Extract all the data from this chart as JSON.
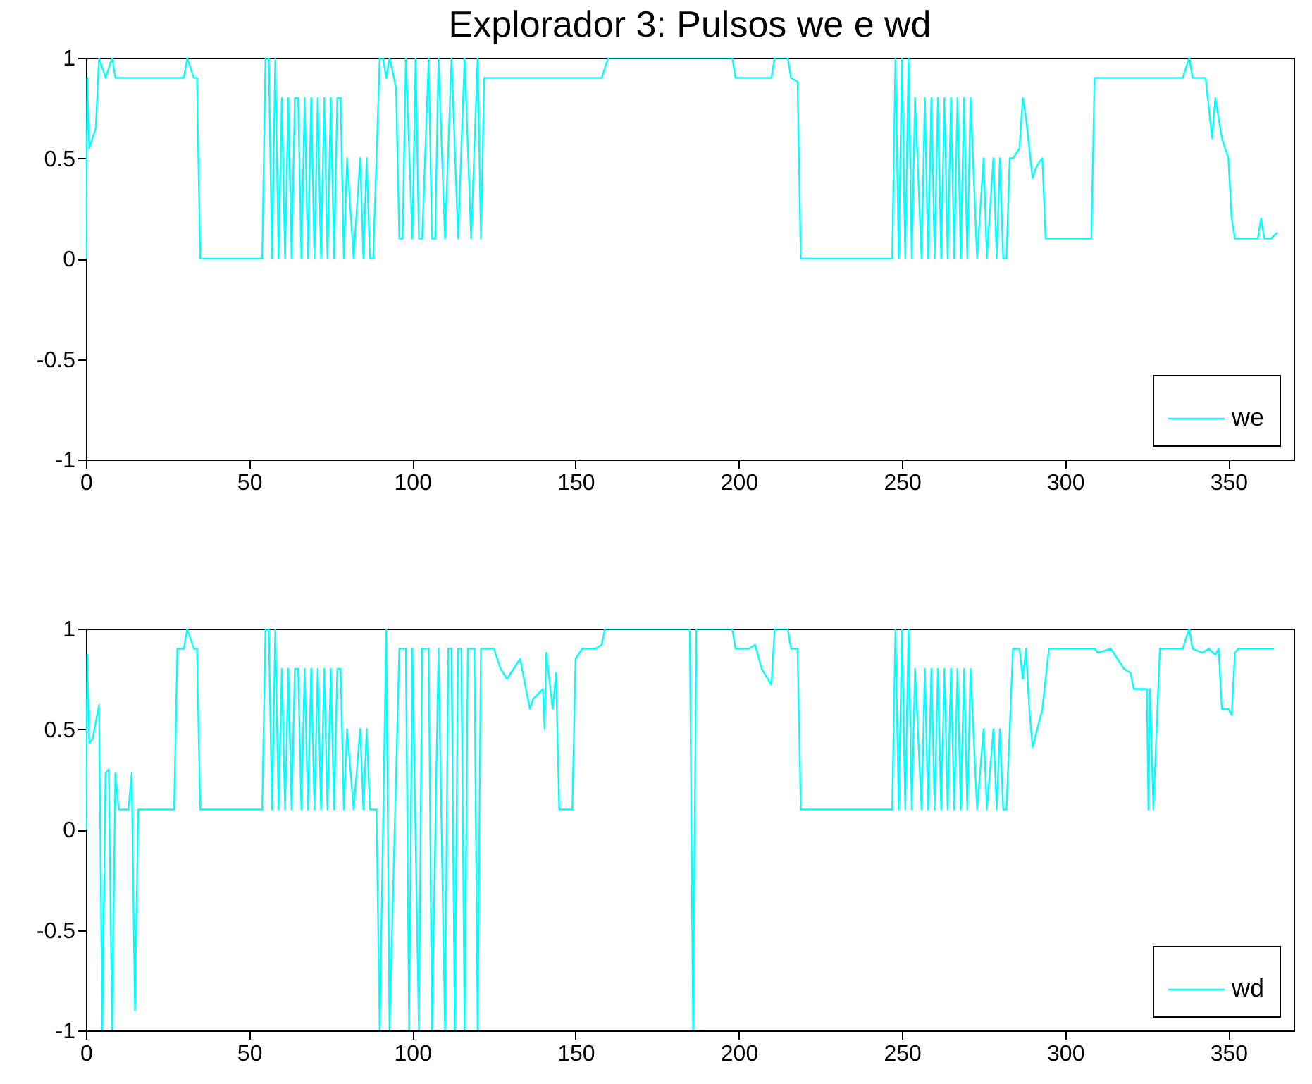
{
  "chart_data": [
    {
      "type": "line",
      "title": "Explorador 3: Pulsos we e wd",
      "xlim": [
        0,
        370
      ],
      "xticks": [
        0,
        50,
        100,
        150,
        200,
        250,
        300,
        350
      ],
      "ylim": [
        -1,
        1
      ],
      "yticks": [
        -1,
        -0.5,
        0,
        0.5,
        1
      ],
      "legend": "bottom right",
      "series": [
        {
          "name": "we",
          "color": "#00ffff",
          "x": [
            0,
            0.4,
            1,
            3,
            4,
            6,
            8,
            9,
            20,
            30,
            31,
            33,
            34,
            35,
            54,
            55,
            56,
            57,
            58,
            59,
            60,
            61,
            62,
            63,
            64,
            65,
            66,
            67,
            68,
            69,
            70,
            71,
            72,
            73,
            74,
            75,
            76,
            77,
            78,
            79,
            80,
            82,
            84,
            85,
            86,
            87,
            88,
            90,
            91,
            92,
            93,
            95,
            96,
            97,
            98,
            100,
            101,
            102,
            103,
            105,
            106,
            107,
            108,
            110,
            112,
            114,
            116,
            118,
            120,
            121,
            122,
            140,
            158,
            160,
            180,
            198,
            199,
            210,
            211,
            215,
            216,
            218,
            219,
            247,
            248,
            249,
            250,
            251,
            252,
            253,
            254,
            256,
            257,
            258,
            259,
            260,
            261,
            262,
            263,
            264,
            265,
            266,
            267,
            268,
            269,
            270,
            271,
            273,
            275,
            276,
            278,
            279,
            280,
            281,
            282,
            283,
            284,
            286,
            287,
            288,
            290,
            291,
            292,
            293,
            294,
            296,
            308,
            309,
            336,
            338,
            339,
            343,
            345,
            346,
            348,
            350,
            351,
            352,
            359,
            360,
            361,
            363,
            365
          ],
          "values": [
            0,
            0.9,
            0.55,
            0.65,
            1,
            0.9,
            1,
            0.9,
            0.9,
            0.9,
            1,
            0.9,
            0.9,
            0,
            0,
            1,
            1,
            0,
            1,
            0,
            0.8,
            0,
            0.8,
            0,
            0.8,
            0.8,
            0,
            0.8,
            0,
            0.8,
            0,
            0.8,
            0,
            0.8,
            0,
            0.8,
            0,
            0.8,
            0.8,
            0,
            0.5,
            0,
            0.5,
            0,
            0.5,
            0,
            0,
            1,
            1,
            0.9,
            1,
            0.85,
            0.1,
            0.1,
            1,
            0.1,
            1,
            0.1,
            0.1,
            1,
            0.1,
            0.1,
            1,
            0.1,
            1,
            0.1,
            1,
            0.1,
            1,
            0.1,
            0.9,
            0.9,
            0.9,
            1,
            1,
            1,
            0.9,
            0.9,
            1,
            1,
            0.9,
            0.88,
            0,
            0,
            1,
            0,
            1,
            0,
            1,
            0,
            0.8,
            0,
            0.8,
            0,
            0.8,
            0,
            0.8,
            0,
            0.8,
            0,
            0.8,
            0,
            0.8,
            0,
            0.8,
            0,
            0.8,
            0,
            0.5,
            0,
            0.5,
            0,
            0.5,
            0,
            0,
            0.5,
            0.5,
            0.55,
            0.8,
            0.7,
            0.4,
            0.45,
            0.48,
            0.5,
            0.1,
            0.1,
            0.1,
            0.9,
            0.9,
            1,
            0.9,
            0.9,
            0.6,
            0.8,
            0.6,
            0.5,
            0.2,
            0.1,
            0.1,
            0.2,
            0.1,
            0.1,
            0.13
          ]
        }
      ]
    },
    {
      "type": "line",
      "xlim": [
        0,
        370
      ],
      "xticks": [
        0,
        50,
        100,
        150,
        200,
        250,
        300,
        350
      ],
      "ylim": [
        -1,
        1
      ],
      "yticks": [
        -1,
        -0.5,
        0,
        0.5,
        1
      ],
      "legend": "bottom right",
      "series": [
        {
          "name": "wd",
          "color": "#00ffff",
          "x": [
            0,
            0.4,
            1,
            2,
            4,
            5,
            6,
            7,
            8,
            9,
            10,
            13,
            14,
            15,
            16,
            27,
            28,
            30,
            31,
            33,
            34,
            35,
            54,
            55,
            56,
            57,
            58,
            59,
            60,
            61,
            62,
            63,
            64,
            65,
            66,
            67,
            68,
            69,
            70,
            71,
            72,
            73,
            74,
            75,
            76,
            77,
            78,
            79,
            80,
            82,
            84,
            85,
            86,
            87,
            89,
            90,
            92,
            93,
            96,
            98,
            99,
            100,
            102,
            103,
            105,
            106,
            108,
            110,
            111,
            112,
            113,
            114,
            115,
            116,
            117,
            119,
            120,
            121,
            125,
            127,
            129,
            131,
            133,
            136,
            137,
            140,
            140.5,
            141,
            143,
            144,
            145,
            149,
            150,
            152,
            156,
            158,
            159,
            185,
            186,
            187,
            198,
            199,
            203,
            205,
            207,
            210,
            211,
            215,
            216,
            218,
            219,
            247,
            248,
            249,
            250,
            251,
            252,
            253,
            254,
            256,
            257,
            258,
            259,
            260,
            261,
            262,
            263,
            264,
            265,
            266,
            267,
            268,
            269,
            270,
            271,
            273,
            275,
            276,
            278,
            279,
            280,
            281,
            282,
            284,
            286,
            287,
            288,
            289,
            290,
            293,
            295,
            309,
            310,
            314,
            318,
            320,
            321,
            325,
            325.5,
            326,
            327,
            329,
            336,
            338,
            339,
            342,
            344,
            346,
            347,
            348,
            350,
            351,
            352,
            353,
            360,
            364
          ],
          "values": [
            0,
            0.87,
            0.43,
            0.45,
            0.62,
            -1,
            0.28,
            0.3,
            -1,
            0.28,
            0.1,
            0.1,
            0.28,
            -0.9,
            0.1,
            0.1,
            0.9,
            0.9,
            1,
            0.9,
            0.9,
            0.1,
            0.1,
            1,
            1,
            0.1,
            1,
            0.1,
            0.8,
            0.1,
            0.8,
            0.1,
            0.8,
            0.8,
            0.1,
            0.8,
            0.1,
            0.8,
            0.1,
            0.8,
            0.1,
            0.8,
            0.1,
            0.8,
            0.1,
            0.8,
            0.8,
            0.1,
            0.5,
            0.1,
            0.5,
            0.1,
            0.5,
            0.1,
            0.1,
            -1,
            1,
            -1,
            0.9,
            0.9,
            -1,
            0.9,
            -1,
            0.9,
            0.9,
            -1,
            0.9,
            -1,
            0.9,
            0.9,
            -1,
            0.9,
            0.9,
            -1,
            0.9,
            0.9,
            -1,
            0.9,
            0.9,
            0.8,
            0.75,
            0.8,
            0.85,
            0.6,
            0.65,
            0.7,
            0.5,
            0.88,
            0.6,
            0.78,
            0.1,
            0.1,
            0.85,
            0.9,
            0.9,
            0.92,
            1,
            1,
            -1,
            1,
            1,
            0.9,
            0.9,
            0.92,
            0.8,
            0.72,
            1,
            1,
            0.9,
            0.9,
            0.1,
            0.1,
            1,
            0.1,
            1,
            0.1,
            1,
            0.1,
            0.8,
            0.1,
            0.8,
            0.1,
            0.8,
            0.1,
            0.8,
            0.1,
            0.8,
            0.1,
            0.8,
            0.1,
            0.8,
            0.1,
            0.8,
            0.1,
            0.8,
            0.1,
            0.5,
            0.1,
            0.5,
            0.1,
            0.5,
            0.1,
            0.1,
            0.9,
            0.9,
            0.75,
            0.9,
            0.6,
            0.41,
            0.6,
            0.9,
            0.9,
            0.88,
            0.9,
            0.8,
            0.78,
            0.7,
            0.7,
            0.1,
            0.7,
            0.1,
            0.9,
            0.9,
            1,
            0.9,
            0.88,
            0.9,
            0.87,
            0.9,
            0.6,
            0.6,
            0.57,
            0.88,
            0.9,
            0.9,
            0.9
          ]
        }
      ]
    }
  ]
}
